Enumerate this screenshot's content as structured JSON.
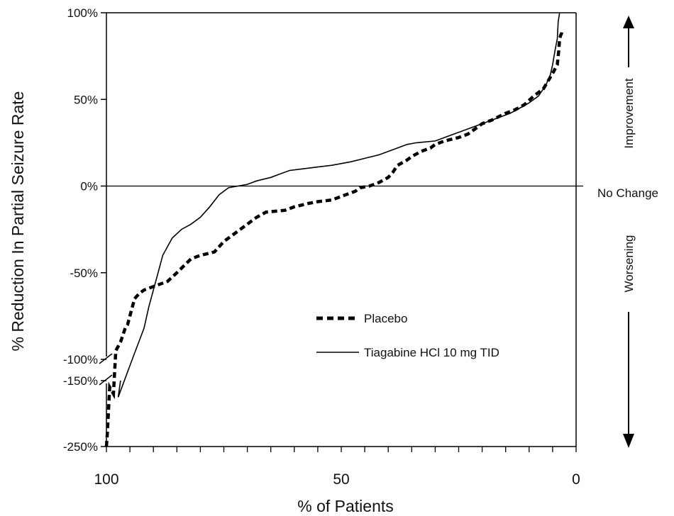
{
  "chart_data": {
    "type": "line",
    "xlabel": "% of Patients",
    "ylabel": "% Reduction In Partial Seizure Rate",
    "x_reversed": true,
    "xlim": [
      100,
      0
    ],
    "x_ticks": [
      {
        "value": 100,
        "label": "100"
      },
      {
        "value": 50,
        "label": "50"
      },
      {
        "value": 0,
        "label": "0"
      }
    ],
    "y_axis_broken": true,
    "ylim": [
      -250,
      100
    ],
    "y_ticks": [
      {
        "value": 100,
        "label": "100%"
      },
      {
        "value": 50,
        "label": "50%"
      },
      {
        "value": 0,
        "label": "0%"
      },
      {
        "value": -50,
        "label": "-50%"
      },
      {
        "value": -100,
        "label": "-100%"
      },
      {
        "value": -150,
        "label": "-150%"
      },
      {
        "value": -250,
        "label": "-250%"
      }
    ],
    "zero_line": true,
    "grid": false,
    "legend_position": "bottom-center",
    "series": [
      {
        "name": "Placebo",
        "style": "dashed",
        "x": [
          100,
          99.8,
          99.3,
          98.5,
          98,
          97,
          96,
          95.5,
          94.5,
          94,
          93,
          92,
          90,
          87,
          85,
          82,
          80,
          77,
          75,
          73,
          70,
          68,
          66,
          62,
          60,
          57,
          55,
          52,
          49,
          47,
          46,
          44,
          42,
          40,
          39,
          38,
          36,
          35,
          33,
          31,
          30,
          28,
          25,
          23,
          21,
          20,
          18,
          15,
          13,
          11,
          9,
          7,
          5,
          4,
          3.7,
          3.5,
          3.3,
          3.1,
          3
        ],
        "y": [
          -250,
          -230,
          -160,
          -170,
          -95,
          -90,
          -82,
          -80,
          -70,
          -65,
          -62,
          -60,
          -58,
          -55,
          -50,
          -42,
          -40,
          -38,
          -32,
          -28,
          -22,
          -18,
          -15,
          -14,
          -12,
          -10,
          -9,
          -8,
          -5,
          -3,
          -1,
          0,
          2,
          5,
          8,
          12,
          15,
          17,
          20,
          22,
          24,
          26,
          28,
          30,
          34,
          36,
          38,
          42,
          44,
          47,
          52,
          56,
          65,
          70,
          78,
          85,
          87,
          88,
          90
        ],
        "color": "#000000"
      },
      {
        "name": "Tiagabine HCl 10 mg TID",
        "style": "solid",
        "x": [
          97,
          97.5,
          94.5,
          92,
          91,
          89,
          88,
          86,
          84,
          82,
          80,
          78,
          76,
          74,
          72,
          70,
          68,
          65,
          63,
          61,
          58,
          55,
          52,
          48,
          45,
          42,
          40,
          38,
          36,
          34,
          30,
          28,
          26,
          24,
          22,
          20,
          18,
          16,
          14,
          12,
          10,
          8,
          6.5,
          5.5,
          5,
          4.5,
          4,
          3.8,
          3.5
        ],
        "y": [
          -150,
          -175,
          -100,
          -82,
          -70,
          -50,
          -40,
          -30,
          -25,
          -22,
          -18,
          -12,
          -5,
          -1,
          0,
          1,
          3,
          5,
          7,
          9,
          10,
          11,
          12,
          14,
          16,
          18,
          20,
          22,
          24,
          25,
          26,
          28,
          30,
          32,
          34,
          36,
          38,
          40,
          42,
          45,
          48,
          52,
          58,
          64,
          70,
          78,
          85,
          95,
          100
        ],
        "color": "#000000"
      }
    ],
    "side_labels": {
      "improvement": "Improvement",
      "no_change": "No Change",
      "worsening": "Worsening"
    }
  }
}
